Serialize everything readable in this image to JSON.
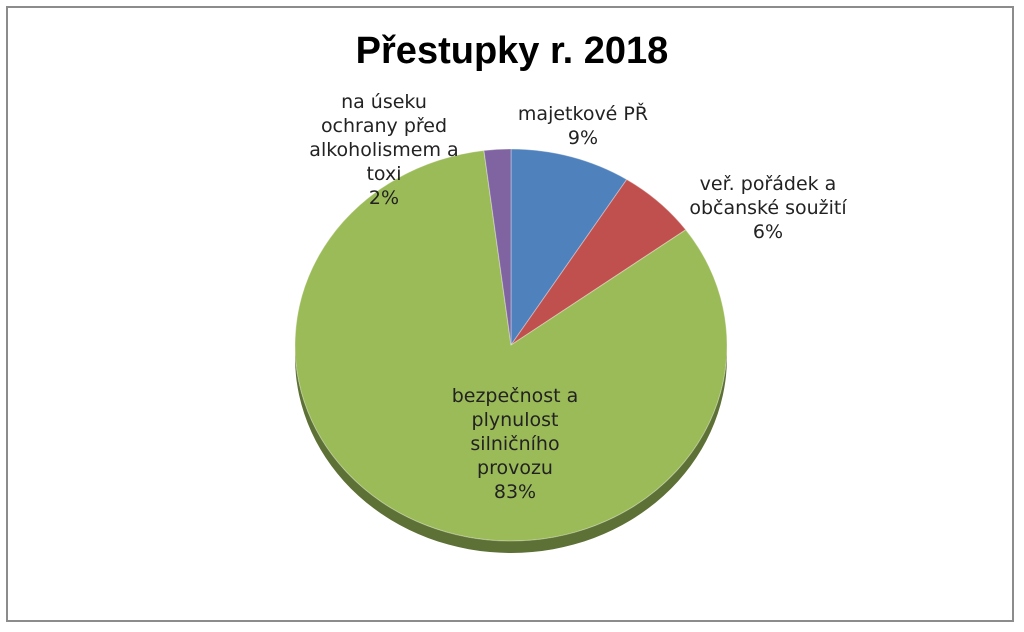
{
  "chart_data": {
    "type": "pie",
    "title": "Přestupky r. 2018",
    "start_angle_deg": 0,
    "direction": "clockwise",
    "slices": [
      {
        "name": "majetkové PŘ",
        "value": 9,
        "label": "9%",
        "name_lines": [
          "majetkové PŘ"
        ],
        "color": "#4f81bd"
      },
      {
        "name": "veř. pořádek a občanské soužití",
        "value": 6,
        "label": "6%",
        "name_lines": [
          "veř. pořádek a",
          "občanské soužití"
        ],
        "color": "#c0504d"
      },
      {
        "name": "bezpečnost a plynulost silničního provozu",
        "value": 83,
        "label": "83%",
        "name_lines": [
          "bezpečnost a",
          "plynulost",
          "silničního",
          "provozu"
        ],
        "color": "#9bbb59"
      },
      {
        "name": "na úseku ochrany před alkoholismem a toxi",
        "value": 2,
        "label": "2%",
        "name_lines": [
          "na úseku",
          "ochrany před",
          "alkoholismem a",
          "toxi"
        ],
        "color": "#8064a2"
      }
    ]
  }
}
